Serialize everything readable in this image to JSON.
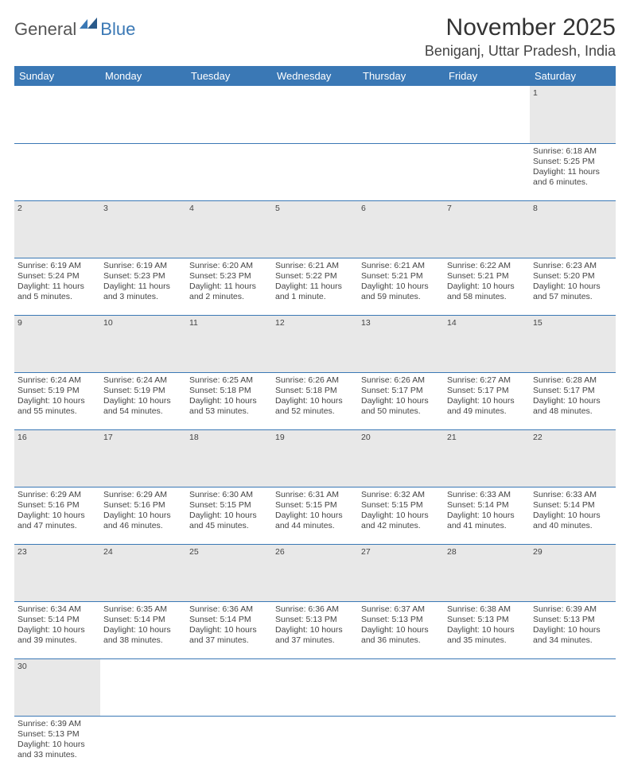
{
  "logo": {
    "text1": "General",
    "text2": "Blue"
  },
  "title": "November 2025",
  "location": "Beniganj, Uttar Pradesh, India",
  "colors": {
    "header_bg": "#3a78b5",
    "header_text": "#ffffff",
    "daynum_bg": "#e8e8e8",
    "border": "#3a78b5",
    "text": "#444444",
    "logo_gray": "#555555",
    "logo_blue": "#3a78b5"
  },
  "daysOfWeek": [
    "Sunday",
    "Monday",
    "Tuesday",
    "Wednesday",
    "Thursday",
    "Friday",
    "Saturday"
  ],
  "startDayIndex": 6,
  "daysInMonth": 30,
  "cells": {
    "1": {
      "sunrise": "6:18 AM",
      "sunset": "5:25 PM",
      "daylight": "11 hours and 6 minutes."
    },
    "2": {
      "sunrise": "6:19 AM",
      "sunset": "5:24 PM",
      "daylight": "11 hours and 5 minutes."
    },
    "3": {
      "sunrise": "6:19 AM",
      "sunset": "5:23 PM",
      "daylight": "11 hours and 3 minutes."
    },
    "4": {
      "sunrise": "6:20 AM",
      "sunset": "5:23 PM",
      "daylight": "11 hours and 2 minutes."
    },
    "5": {
      "sunrise": "6:21 AM",
      "sunset": "5:22 PM",
      "daylight": "11 hours and 1 minute."
    },
    "6": {
      "sunrise": "6:21 AM",
      "sunset": "5:21 PM",
      "daylight": "10 hours and 59 minutes."
    },
    "7": {
      "sunrise": "6:22 AM",
      "sunset": "5:21 PM",
      "daylight": "10 hours and 58 minutes."
    },
    "8": {
      "sunrise": "6:23 AM",
      "sunset": "5:20 PM",
      "daylight": "10 hours and 57 minutes."
    },
    "9": {
      "sunrise": "6:24 AM",
      "sunset": "5:19 PM",
      "daylight": "10 hours and 55 minutes."
    },
    "10": {
      "sunrise": "6:24 AM",
      "sunset": "5:19 PM",
      "daylight": "10 hours and 54 minutes."
    },
    "11": {
      "sunrise": "6:25 AM",
      "sunset": "5:18 PM",
      "daylight": "10 hours and 53 minutes."
    },
    "12": {
      "sunrise": "6:26 AM",
      "sunset": "5:18 PM",
      "daylight": "10 hours and 52 minutes."
    },
    "13": {
      "sunrise": "6:26 AM",
      "sunset": "5:17 PM",
      "daylight": "10 hours and 50 minutes."
    },
    "14": {
      "sunrise": "6:27 AM",
      "sunset": "5:17 PM",
      "daylight": "10 hours and 49 minutes."
    },
    "15": {
      "sunrise": "6:28 AM",
      "sunset": "5:17 PM",
      "daylight": "10 hours and 48 minutes."
    },
    "16": {
      "sunrise": "6:29 AM",
      "sunset": "5:16 PM",
      "daylight": "10 hours and 47 minutes."
    },
    "17": {
      "sunrise": "6:29 AM",
      "sunset": "5:16 PM",
      "daylight": "10 hours and 46 minutes."
    },
    "18": {
      "sunrise": "6:30 AM",
      "sunset": "5:15 PM",
      "daylight": "10 hours and 45 minutes."
    },
    "19": {
      "sunrise": "6:31 AM",
      "sunset": "5:15 PM",
      "daylight": "10 hours and 44 minutes."
    },
    "20": {
      "sunrise": "6:32 AM",
      "sunset": "5:15 PM",
      "daylight": "10 hours and 42 minutes."
    },
    "21": {
      "sunrise": "6:33 AM",
      "sunset": "5:14 PM",
      "daylight": "10 hours and 41 minutes."
    },
    "22": {
      "sunrise": "6:33 AM",
      "sunset": "5:14 PM",
      "daylight": "10 hours and 40 minutes."
    },
    "23": {
      "sunrise": "6:34 AM",
      "sunset": "5:14 PM",
      "daylight": "10 hours and 39 minutes."
    },
    "24": {
      "sunrise": "6:35 AM",
      "sunset": "5:14 PM",
      "daylight": "10 hours and 38 minutes."
    },
    "25": {
      "sunrise": "6:36 AM",
      "sunset": "5:14 PM",
      "daylight": "10 hours and 37 minutes."
    },
    "26": {
      "sunrise": "6:36 AM",
      "sunset": "5:13 PM",
      "daylight": "10 hours and 37 minutes."
    },
    "27": {
      "sunrise": "6:37 AM",
      "sunset": "5:13 PM",
      "daylight": "10 hours and 36 minutes."
    },
    "28": {
      "sunrise": "6:38 AM",
      "sunset": "5:13 PM",
      "daylight": "10 hours and 35 minutes."
    },
    "29": {
      "sunrise": "6:39 AM",
      "sunset": "5:13 PM",
      "daylight": "10 hours and 34 minutes."
    },
    "30": {
      "sunrise": "6:39 AM",
      "sunset": "5:13 PM",
      "daylight": "10 hours and 33 minutes."
    }
  },
  "labels": {
    "sunrise": "Sunrise:",
    "sunset": "Sunset:",
    "daylight": "Daylight:"
  }
}
